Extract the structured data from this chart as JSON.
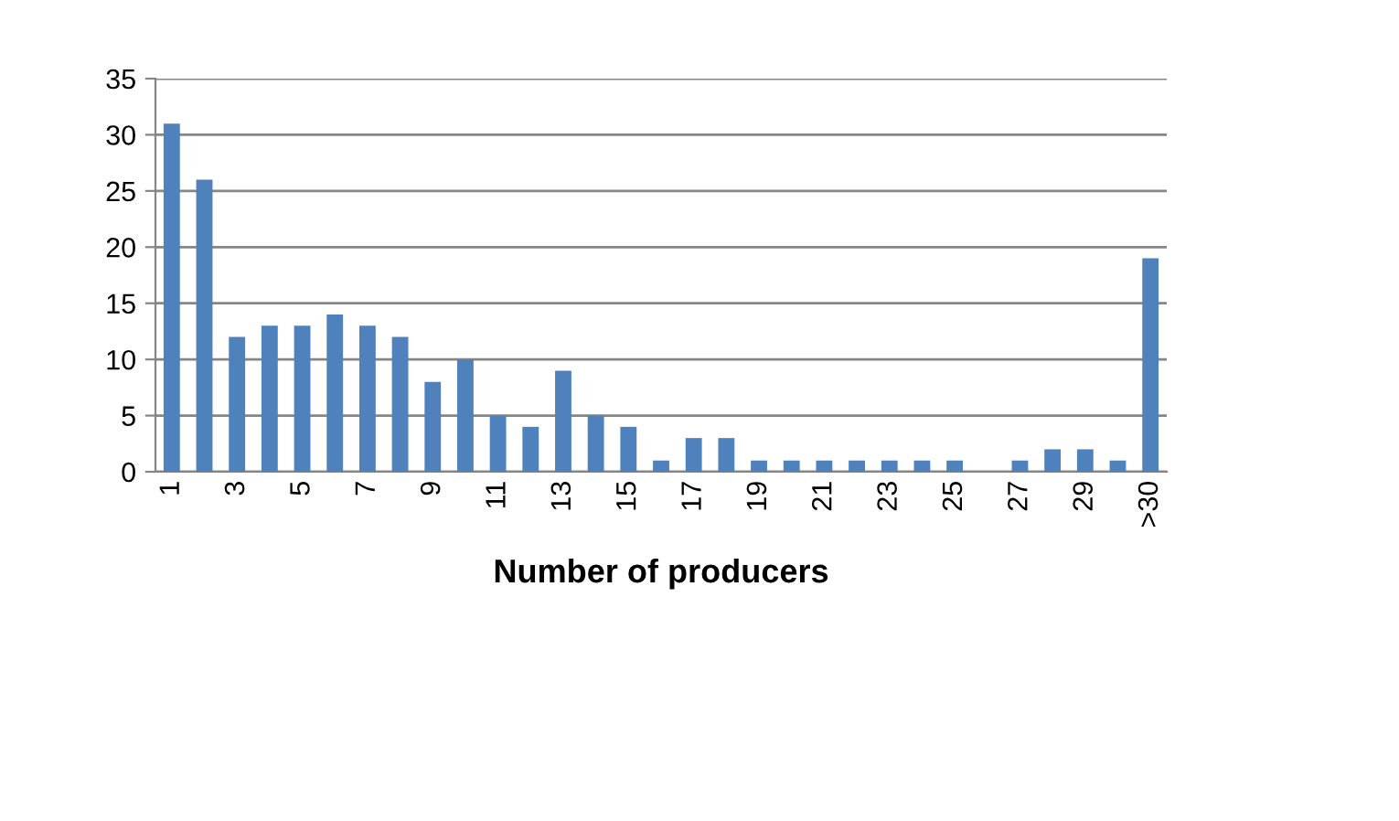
{
  "chart_data": {
    "type": "bar",
    "xlabel": "Number of producers",
    "categories": [
      "1",
      null,
      "3",
      null,
      "5",
      null,
      "7",
      null,
      "9",
      null,
      "11",
      null,
      "13",
      null,
      "15",
      null,
      "17",
      null,
      "19",
      null,
      "21",
      null,
      "23",
      null,
      "25",
      null,
      "27",
      null,
      "29",
      null,
      ">30"
    ],
    "values": [
      31,
      26,
      12,
      13,
      13,
      14,
      13,
      12,
      8,
      10,
      5,
      4,
      9,
      5,
      4,
      1,
      3,
      3,
      1,
      1,
      1,
      1,
      1,
      1,
      1,
      0,
      1,
      2,
      2,
      1,
      19
    ],
    "color": "#4f81bd",
    "ylim": [
      0,
      35
    ],
    "yticks": [
      0,
      5,
      10,
      15,
      20,
      25,
      30,
      35
    ],
    "grid": "y",
    "legend": false
  }
}
